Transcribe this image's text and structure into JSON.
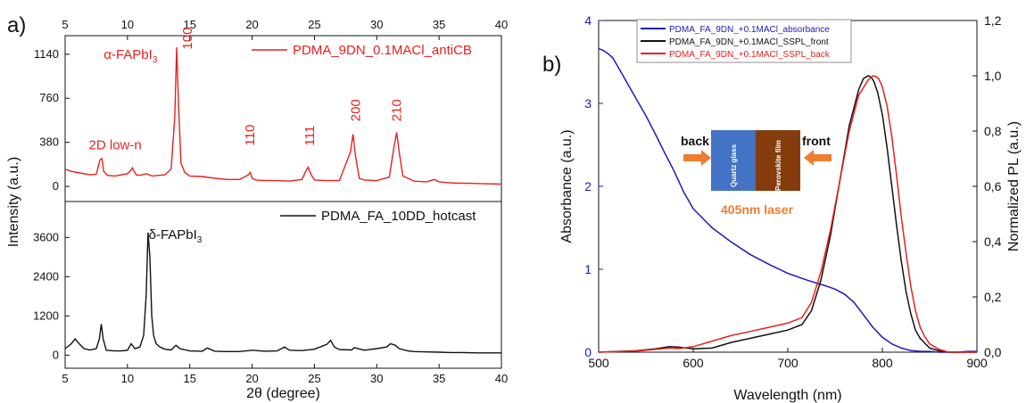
{
  "panel_a_label": "a)",
  "panel_b_label": "b)",
  "chart_data": [
    {
      "type": "line",
      "panel": "a) top",
      "xlabel": "",
      "ylabel": "",
      "xlim": [
        5,
        40
      ],
      "ylim": [
        -130,
        1300
      ],
      "xticks": [
        5,
        10,
        15,
        20,
        25,
        30,
        35,
        40
      ],
      "yticks": [
        0,
        380,
        760,
        1140
      ],
      "ticks_top": true,
      "legend": "top-right",
      "color": "#e8211d",
      "series": [
        {
          "name": "PDMA_9DN_0.1MACl_antiCB",
          "x": [
            5,
            5.5,
            6,
            6.5,
            7,
            7.5,
            7.8,
            7.95,
            8.1,
            8.4,
            9,
            9.5,
            10,
            10.2,
            10.4,
            10.7,
            11,
            11.5,
            12,
            12.5,
            13,
            13.5,
            13.8,
            13.95,
            14.1,
            14.3,
            14.6,
            15,
            16,
            17,
            18,
            19,
            19.7,
            19.85,
            20,
            20.3,
            21,
            22,
            23,
            24,
            24.3,
            24.5,
            24.7,
            25,
            26,
            27,
            27.9,
            28.1,
            28.3,
            28.6,
            29,
            30,
            31,
            31.4,
            31.6,
            31.8,
            32.1,
            33,
            34,
            34.6,
            35,
            36,
            38,
            40
          ],
          "values": [
            150,
            130,
            120,
            110,
            100,
            105,
            230,
            240,
            130,
            95,
            90,
            100,
            110,
            130,
            160,
            100,
            95,
            110,
            90,
            95,
            100,
            150,
            600,
            1200,
            700,
            200,
            120,
            90,
            85,
            70,
            60,
            60,
            100,
            120,
            70,
            55,
            50,
            50,
            45,
            60,
            130,
            165,
            110,
            55,
            50,
            50,
            300,
            450,
            260,
            70,
            55,
            50,
            80,
            350,
            465,
            300,
            90,
            45,
            40,
            60,
            40,
            30,
            25,
            20
          ]
        }
      ],
      "annotations": [
        {
          "text": "2D low-n",
          "x": 6.9,
          "y": 320
        },
        {
          "text": "α-FAPbI",
          "sub": "3",
          "x": 8.1,
          "y": 1100
        },
        {
          "text": "100",
          "x": 14.8,
          "y": 1180,
          "rotated": true
        },
        {
          "text": "110",
          "x": 19.8,
          "y": 350,
          "rotated": true
        },
        {
          "text": "111",
          "x": 24.6,
          "y": 350,
          "rotated": true
        },
        {
          "text": "200",
          "x": 28.3,
          "y": 560,
          "rotated": true
        },
        {
          "text": "210",
          "x": 31.6,
          "y": 560,
          "rotated": true
        }
      ]
    },
    {
      "type": "line",
      "panel": "a) bottom",
      "xlabel": "2θ (degree)",
      "ylabel": "Intensity (a.u.)",
      "xlim": [
        5,
        40
      ],
      "ylim": [
        -400,
        4700
      ],
      "xticks": [
        5,
        10,
        15,
        20,
        25,
        30,
        35,
        40
      ],
      "yticks": [
        0,
        1200,
        2400,
        3600
      ],
      "legend": "top-right",
      "color": "#111111",
      "series": [
        {
          "name": "PDMA_FA_10DD_hotcast",
          "x": [
            5,
            5.5,
            5.8,
            6,
            6.5,
            7,
            7.5,
            7.75,
            7.9,
            8.05,
            8.3,
            9,
            9.5,
            10,
            10.3,
            10.6,
            11,
            11.3,
            11.5,
            11.65,
            11.8,
            11.95,
            12.1,
            12.3,
            12.6,
            13,
            13.5,
            13.9,
            14.2,
            15,
            16,
            16.4,
            17,
            18,
            19,
            20,
            21,
            22,
            22.6,
            23,
            24,
            25,
            26,
            26.3,
            26.6,
            27,
            28,
            28.2,
            29,
            30,
            30.8,
            31.1,
            31.5,
            31.8,
            32.5,
            33,
            34,
            35,
            36,
            37,
            38,
            39,
            40
          ],
          "values": [
            200,
            350,
            500,
            400,
            200,
            160,
            200,
            500,
            950,
            500,
            150,
            130,
            130,
            150,
            350,
            200,
            250,
            600,
            1800,
            3750,
            3000,
            1200,
            600,
            350,
            250,
            180,
            160,
            300,
            200,
            130,
            120,
            220,
            120,
            110,
            110,
            150,
            120,
            130,
            250,
            150,
            140,
            180,
            330,
            450,
            250,
            170,
            160,
            230,
            150,
            200,
            250,
            350,
            300,
            200,
            130,
            110,
            100,
            90,
            80,
            80,
            70,
            70,
            70
          ]
        }
      ],
      "annotations": [
        {
          "text": "δ-FAPbI",
          "sub": "3",
          "x": 11.7,
          "y": 3550
        }
      ]
    },
    {
      "type": "line",
      "panel": "b)",
      "xlabel": "Wavelength (nm)",
      "ylabel": "Absorbance (a.u.)",
      "y2label": "Normalized PL (a.u.)",
      "xlim": [
        500,
        900
      ],
      "ylim": [
        0,
        4
      ],
      "y2lim": [
        0,
        1.2
      ],
      "xticks": [
        500,
        600,
        700,
        800,
        900
      ],
      "yticks": [
        0,
        1,
        2,
        3,
        4
      ],
      "y2ticks": [
        "0,0",
        "0,2",
        "0,4",
        "0,6",
        "0,8",
        "1,0",
        "1,2"
      ],
      "legend": "top-center",
      "series": [
        {
          "name": "PDMA_FA_9DN_+0.1MACl_absorbance",
          "color": "#1b1bb8",
          "axis": "left",
          "x": [
            500,
            505,
            510,
            515,
            520,
            530,
            540,
            550,
            560,
            570,
            580,
            590,
            600,
            620,
            640,
            660,
            680,
            700,
            720,
            740,
            750,
            760,
            770,
            780,
            790,
            800,
            810,
            820,
            830,
            840,
            850,
            860,
            870,
            880,
            890,
            900
          ],
          "values": [
            3.66,
            3.64,
            3.6,
            3.55,
            3.45,
            3.25,
            3.05,
            2.85,
            2.63,
            2.4,
            2.18,
            1.93,
            1.73,
            1.5,
            1.33,
            1.18,
            1.06,
            0.95,
            0.87,
            0.8,
            0.76,
            0.7,
            0.6,
            0.45,
            0.3,
            0.18,
            0.1,
            0.05,
            0.02,
            0.01,
            0.01,
            0.0,
            0.0,
            0.0,
            0.01,
            0.01
          ]
        },
        {
          "name": "PDMA_FA_9DN_+0.1MACl_SSPL_front",
          "color": "#111111",
          "axis": "right",
          "x": [
            500,
            540,
            560,
            575,
            585,
            600,
            620,
            640,
            660,
            680,
            700,
            715,
            725,
            735,
            745,
            755,
            765,
            775,
            780,
            785,
            788,
            791,
            795,
            800,
            805,
            810,
            815,
            820,
            825,
            830,
            835,
            840,
            850,
            860,
            870,
            880,
            900
          ],
          "values": [
            0.0,
            0.005,
            0.012,
            0.02,
            0.018,
            0.012,
            0.015,
            0.035,
            0.05,
            0.065,
            0.08,
            0.1,
            0.15,
            0.26,
            0.42,
            0.62,
            0.82,
            0.95,
            0.99,
            1.0,
            0.995,
            0.98,
            0.94,
            0.86,
            0.74,
            0.6,
            0.46,
            0.33,
            0.22,
            0.14,
            0.08,
            0.05,
            0.015,
            0.005,
            0.0,
            0.0,
            0.0
          ]
        },
        {
          "name": "PDMA_FA_9DN_+0.1MACl_SSPL_back",
          "color": "#e8211d",
          "axis": "right",
          "x": [
            500,
            540,
            560,
            575,
            585,
            600,
            620,
            640,
            660,
            680,
            700,
            715,
            725,
            735,
            745,
            755,
            765,
            775,
            785,
            790,
            793,
            796,
            800,
            805,
            810,
            815,
            820,
            825,
            830,
            835,
            840,
            845,
            850,
            860,
            870,
            880,
            900
          ],
          "values": [
            0.0,
            0.004,
            0.01,
            0.015,
            0.013,
            0.02,
            0.04,
            0.06,
            0.075,
            0.09,
            0.105,
            0.125,
            0.18,
            0.29,
            0.44,
            0.62,
            0.8,
            0.93,
            0.985,
            1.0,
            0.998,
            0.99,
            0.96,
            0.89,
            0.78,
            0.64,
            0.49,
            0.36,
            0.24,
            0.15,
            0.09,
            0.055,
            0.03,
            0.01,
            0.0,
            0.0,
            0.0
          ]
        }
      ],
      "inset": {
        "left_label": "back",
        "right_label": "front",
        "glass_label": "Quartz glass",
        "film_label": "Perovskite  film",
        "laser_label": "405nm laser",
        "glass_color": "#4472c4",
        "film_color": "#843c0c",
        "arrow_color": "#ed7d31"
      }
    }
  ]
}
